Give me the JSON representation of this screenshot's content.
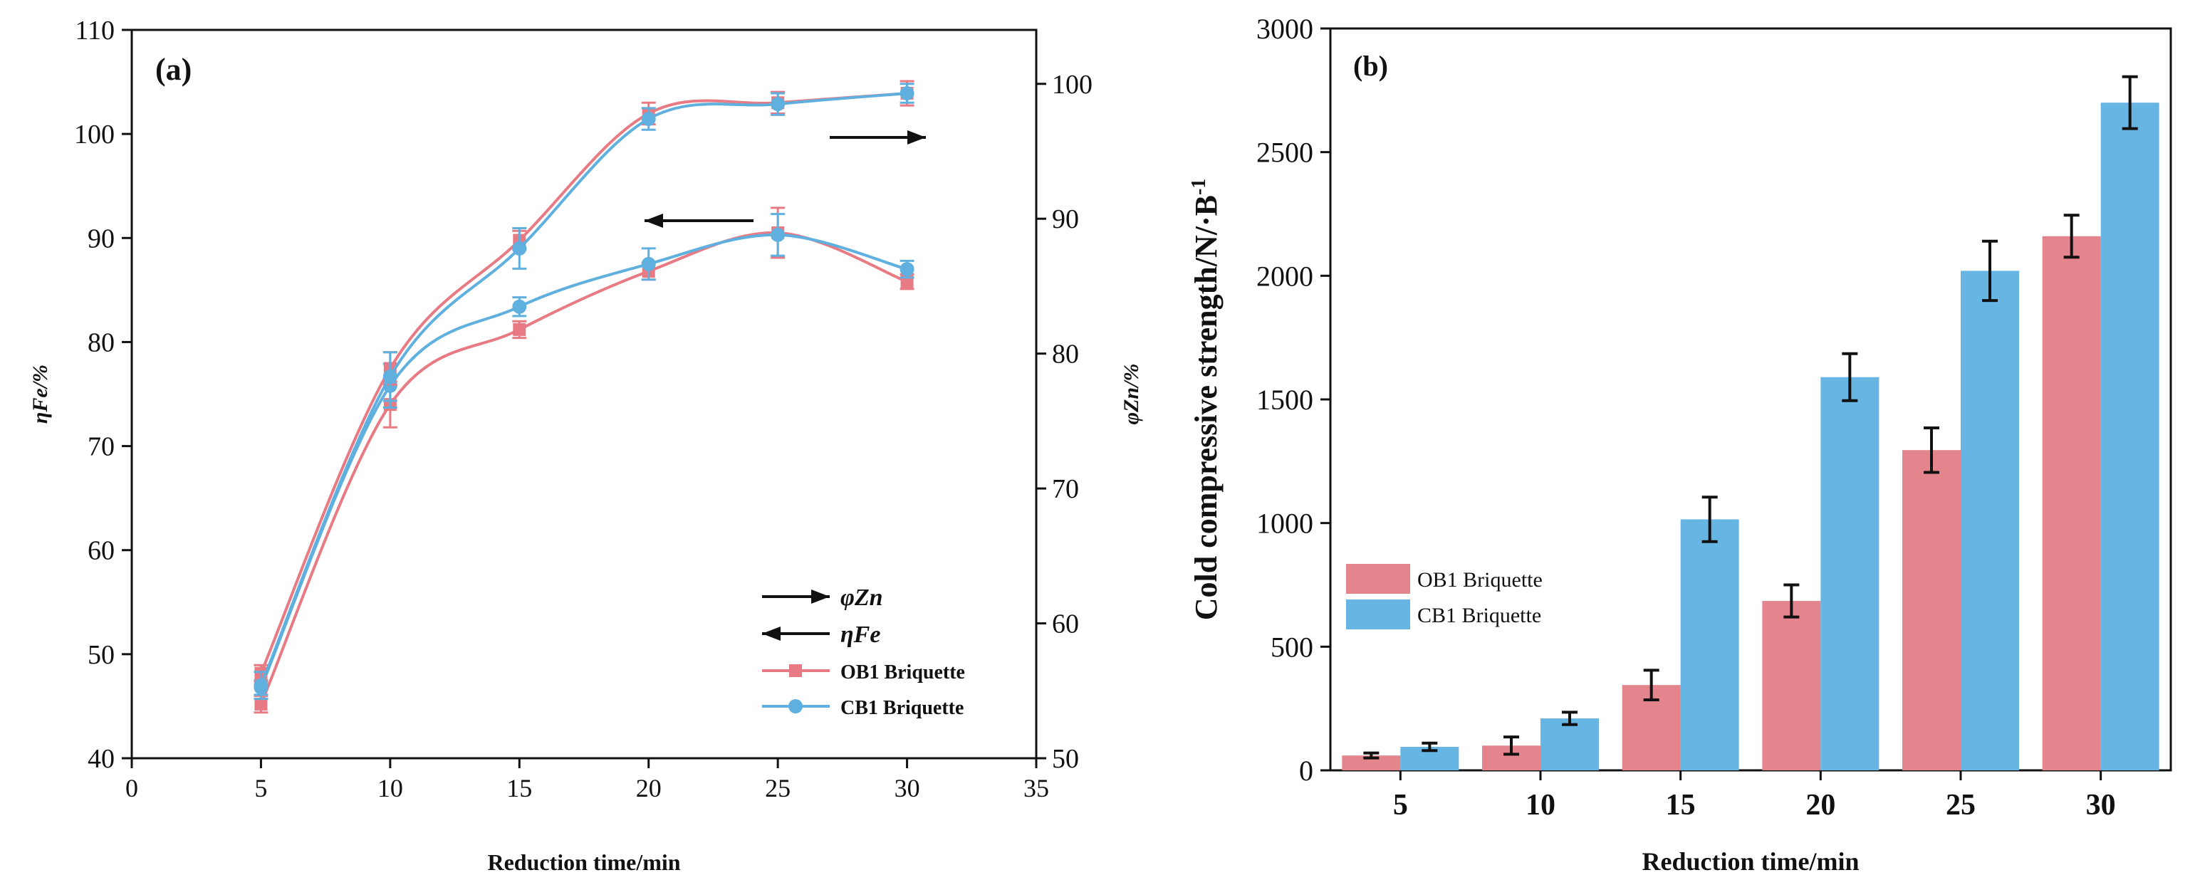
{
  "figure": {
    "colors": {
      "ob1": "#e87a84",
      "cb1": "#5fb0df",
      "axis": "#111111",
      "bar_ob1": "#e4848c",
      "bar_cb1": "#67b5e2"
    }
  },
  "chart_data": [
    {
      "panel_label": "(a)",
      "type": "line",
      "xlabel": "Reduction time/min",
      "ylabel_left": "ηFe/%",
      "ylabel_right": "φZn/%",
      "xlim": [
        0,
        35
      ],
      "xticks": [
        "0",
        "5",
        "10",
        "15",
        "20",
        "25",
        "30",
        "35"
      ],
      "ylim_left": [
        40,
        110
      ],
      "yticks_left": [
        "40",
        "50",
        "60",
        "70",
        "80",
        "90",
        "100",
        "110"
      ],
      "ylim_right": [
        50,
        104
      ],
      "yticks_right": [
        "50",
        "60",
        "70",
        "80",
        "90",
        "100"
      ],
      "x": [
        5,
        10,
        15,
        20,
        25,
        30
      ],
      "series": [
        {
          "name": "OB1 Briquette",
          "key": "ob1",
          "quantity": "ηFe",
          "axis": "left",
          "values": [
            45.2,
            74.0,
            81.2,
            86.8,
            90.5,
            85.8
          ],
          "errors": [
            0.8,
            2.2,
            0.8,
            0.8,
            2.4,
            0.7
          ]
        },
        {
          "name": "CB1 Briquette",
          "key": "cb1",
          "quantity": "ηFe",
          "axis": "left",
          "values": [
            46.8,
            75.8,
            83.4,
            87.5,
            90.3,
            87.0
          ],
          "errors": [
            0.7,
            2.1,
            0.9,
            1.5,
            2.0,
            0.8
          ]
        },
        {
          "name": "OB1 Briquette",
          "key": "ob1",
          "quantity": "φZn",
          "axis": "right",
          "values": [
            56.3,
            78.9,
            88.4,
            97.8,
            98.6,
            99.3
          ],
          "errors": [
            0.6,
            1.2,
            0.7,
            0.8,
            0.8,
            0.9
          ]
        },
        {
          "name": "CB1 Briquette",
          "key": "cb1",
          "quantity": "φZn",
          "axis": "right",
          "values": [
            55.4,
            78.3,
            87.8,
            97.4,
            98.5,
            99.3
          ],
          "errors": [
            1.0,
            1.8,
            1.5,
            0.8,
            0.8,
            0.7
          ]
        }
      ],
      "legend": {
        "arrow_right_label": "φZn",
        "arrow_left_label": "ηFe",
        "entries": [
          "OB1 Briquette",
          "CB1 Briquette"
        ],
        "position": "lower-right"
      }
    },
    {
      "panel_label": "(b)",
      "type": "bar",
      "xlabel": "Reduction time/min",
      "ylabel": "Cold compressive strength/N/·B",
      "ylabel_sup": "-1",
      "ylim": [
        0,
        3000
      ],
      "yticks": [
        "0",
        "500",
        "1000",
        "1500",
        "2000",
        "2500",
        "3000"
      ],
      "categories": [
        "5",
        "10",
        "15",
        "20",
        "25",
        "30"
      ],
      "series": [
        {
          "name": "OB1 Briquette",
          "key": "ob1",
          "values": [
            60,
            100,
            345,
            685,
            1295,
            2160
          ],
          "errors": [
            10,
            35,
            60,
            65,
            90,
            85
          ]
        },
        {
          "name": "CB1 Briquette",
          "key": "cb1",
          "values": [
            95,
            210,
            1015,
            1590,
            2020,
            2700
          ],
          "errors": [
            15,
            25,
            90,
            95,
            120,
            105
          ]
        }
      ],
      "legend": {
        "position": "mid-left"
      }
    }
  ]
}
